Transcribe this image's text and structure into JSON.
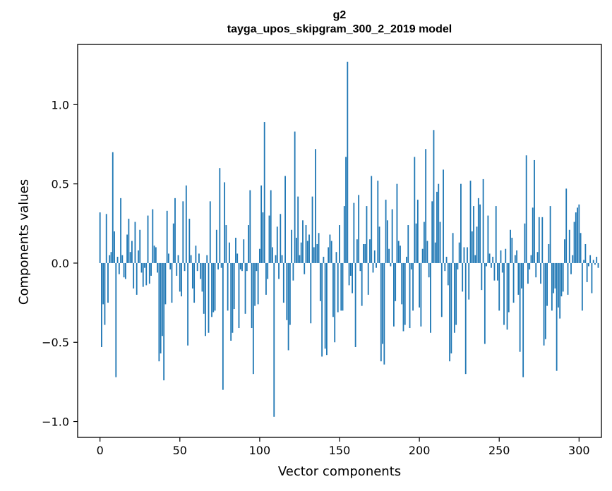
{
  "chart_data": {
    "type": "bar",
    "title": "g2",
    "subtitle": "tayga_upos_skipgram_300_2_2019 model",
    "xlabel": "Vector components",
    "ylabel": "Components values",
    "xlim": [
      -14,
      314
    ],
    "ylim": [
      -1.1,
      1.38
    ],
    "xticks": [
      0,
      50,
      100,
      150,
      200,
      250,
      300
    ],
    "yticks": [
      -1.0,
      -0.5,
      0.0,
      0.5,
      1.0
    ],
    "ytick_labels": [
      "−1.0",
      "−0.5",
      "0.0",
      "0.5",
      "1.0"
    ],
    "grid": false,
    "color": "#1f77b4",
    "values": [
      0.32,
      -0.53,
      -0.26,
      -0.39,
      0.31,
      -0.25,
      0.05,
      0.07,
      0.7,
      0.2,
      -0.72,
      0.04,
      -0.07,
      0.41,
      0.05,
      -0.09,
      -0.1,
      0.18,
      0.28,
      0.07,
      0.14,
      -0.16,
      0.26,
      -0.2,
      0.08,
      0.21,
      -0.06,
      -0.15,
      -0.03,
      -0.14,
      0.3,
      -0.13,
      -0.08,
      0.34,
      0.11,
      0.1,
      -0.06,
      -0.62,
      -0.57,
      -0.46,
      -0.74,
      -0.26,
      0.33,
      0.06,
      -0.04,
      -0.25,
      0.25,
      0.41,
      -0.08,
      0.05,
      -0.18,
      -0.21,
      0.39,
      -0.05,
      0.49,
      -0.52,
      0.28,
      0.05,
      -0.16,
      -0.25,
      0.11,
      -0.05,
      0.06,
      -0.1,
      -0.18,
      -0.32,
      -0.46,
      0.05,
      -0.44,
      0.39,
      -0.34,
      -0.31,
      -0.3,
      0.21,
      -0.04,
      0.6,
      -0.03,
      -0.8,
      0.51,
      0.24,
      -0.3,
      0.13,
      -0.49,
      -0.44,
      -0.29,
      0.16,
      0.06,
      -0.41,
      -0.04,
      -0.05,
      0.15,
      -0.32,
      -0.05,
      0.24,
      0.46,
      -0.41,
      -0.7,
      -0.27,
      -0.05,
      -0.26,
      0.09,
      0.49,
      0.32,
      0.89,
      -0.2,
      -0.1,
      0.3,
      0.46,
      0.1,
      -0.97,
      0.05,
      0.23,
      -0.1,
      0.31,
      0.05,
      -0.25,
      0.55,
      -0.36,
      -0.55,
      -0.39,
      0.21,
      -0.11,
      0.83,
      0.16,
      0.42,
      0.05,
      0.13,
      0.27,
      -0.07,
      0.24,
      0.14,
      0.18,
      -0.38,
      0.42,
      0.1,
      0.72,
      0.12,
      0.19,
      -0.24,
      -0.59,
      0.04,
      -0.54,
      -0.58,
      0.1,
      0.18,
      0.14,
      -0.34,
      -0.5,
      0.07,
      -0.31,
      0.24,
      -0.3,
      -0.3,
      0.36,
      0.67,
      1.27,
      -0.14,
      -0.08,
      -0.19,
      0.38,
      -0.53,
      0.15,
      0.43,
      -0.05,
      -0.27,
      0.12,
      0.12,
      0.36,
      -0.2,
      0.15,
      0.55,
      -0.06,
      0.08,
      -0.03,
      0.52,
      0.23,
      -0.62,
      -0.51,
      -0.64,
      0.4,
      0.27,
      0.09,
      -0.02,
      0.34,
      -0.4,
      -0.24,
      0.5,
      0.14,
      0.11,
      -0.26,
      -0.43,
      -0.39,
      0.04,
      0.24,
      -0.41,
      -0.04,
      -0.3,
      0.67,
      0.25,
      0.4,
      -0.28,
      -0.4,
      0.09,
      0.26,
      0.72,
      0.14,
      -0.09,
      -0.44,
      0.39,
      0.84,
      0.13,
      0.45,
      0.5,
      0.26,
      -0.34,
      0.59,
      -0.05,
      0.04,
      -0.14,
      -0.62,
      -0.57,
      0.19,
      -0.44,
      -0.39,
      -0.04,
      0.13,
      0.5,
      -0.18,
      0.1,
      -0.7,
      0.1,
      -0.23,
      0.52,
      0.2,
      0.36,
      0.05,
      0.23,
      0.41,
      0.37,
      -0.17,
      0.53,
      -0.51,
      -0.02,
      0.3,
      0.06,
      -0.03,
      0.04,
      -0.11,
      0.36,
      -0.11,
      -0.3,
      0.08,
      -0.06,
      -0.39,
      0.09,
      -0.42,
      -0.31,
      0.21,
      0.16,
      -0.25,
      0.05,
      0.08,
      -0.2,
      -0.56,
      -0.16,
      -0.72,
      0.25,
      0.68,
      -0.13,
      -0.04,
      0.05,
      0.35,
      0.65,
      -0.09,
      0.07,
      0.29,
      -0.13,
      0.29,
      -0.52,
      -0.48,
      -0.27,
      0.12,
      0.36,
      -0.3,
      -0.19,
      -0.16,
      -0.68,
      -0.28,
      -0.35,
      -0.21,
      -0.18,
      0.15,
      0.47,
      -0.2,
      0.21,
      -0.07,
      0.05,
      0.26,
      0.32,
      0.35,
      0.37,
      0.19,
      -0.3,
      0.02,
      0.12,
      -0.12,
      -0.02,
      0.05,
      -0.19,
      0.02,
      -0.01,
      0.04,
      -0.03
    ]
  }
}
